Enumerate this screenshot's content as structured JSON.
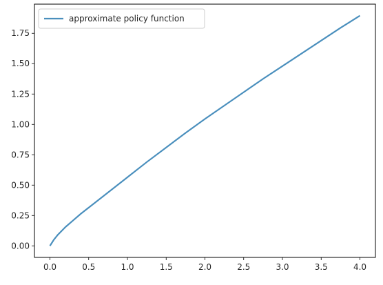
{
  "chart_data": {
    "type": "line",
    "title": "",
    "xlabel": "",
    "ylabel": "",
    "xlim": [
      -0.2,
      4.2
    ],
    "ylim": [
      -0.095,
      1.99
    ],
    "xticks": [
      0.0,
      0.5,
      1.0,
      1.5,
      2.0,
      2.5,
      3.0,
      3.5,
      4.0
    ],
    "xtick_labels": [
      "0.0",
      "0.5",
      "1.0",
      "1.5",
      "2.0",
      "2.5",
      "3.0",
      "3.5",
      "4.0"
    ],
    "yticks": [
      0.0,
      0.25,
      0.5,
      0.75,
      1.0,
      1.25,
      1.5,
      1.75
    ],
    "ytick_labels": [
      "0.00",
      "0.25",
      "0.50",
      "0.75",
      "1.00",
      "1.25",
      "1.50",
      "1.75"
    ],
    "grid": false,
    "legend_position": "top-left",
    "series": [
      {
        "name": "approximate policy function",
        "color": "#4a8fbd",
        "x": [
          0.0,
          0.05,
          0.1,
          0.2,
          0.3,
          0.4,
          0.5,
          0.75,
          1.0,
          1.25,
          1.5,
          1.75,
          2.0,
          2.25,
          2.5,
          2.75,
          3.0,
          3.25,
          3.5,
          3.75,
          4.0
        ],
        "y": [
          0.0,
          0.05,
          0.09,
          0.155,
          0.21,
          0.265,
          0.315,
          0.44,
          0.565,
          0.69,
          0.81,
          0.93,
          1.045,
          1.155,
          1.265,
          1.375,
          1.48,
          1.585,
          1.69,
          1.795,
          1.895
        ]
      }
    ]
  }
}
